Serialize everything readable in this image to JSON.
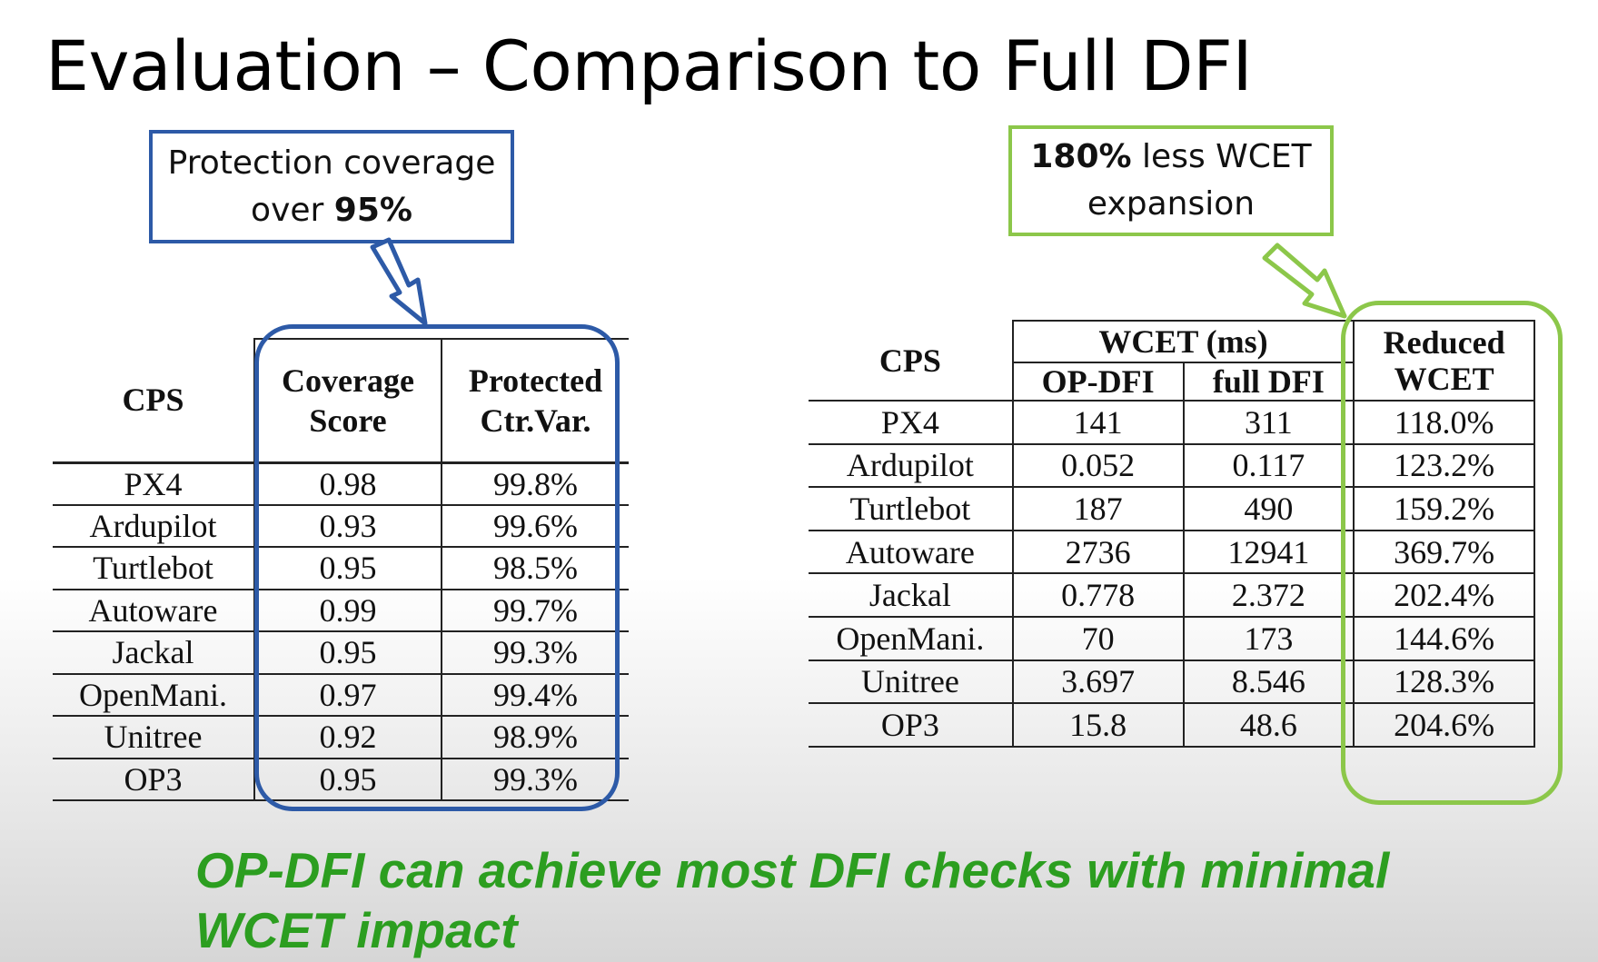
{
  "slide": {
    "title": "Evaluation – Comparison to Full DFI",
    "conclusion": "OP-DFI can achieve most DFI checks with minimal WCET impact"
  },
  "callouts": {
    "coverage": {
      "line1": "Protection coverage",
      "line2_prefix": "over ",
      "line2_bold": "95%"
    },
    "wcet": {
      "line1_bold": "180%",
      "line1_rest": " less WCET",
      "line2": "expansion"
    }
  },
  "coverage_table": {
    "headers": {
      "cps": "CPS",
      "score_1": "Coverage",
      "score_2": "Score",
      "protected_1": "Protected",
      "protected_2": "Ctr.Var."
    },
    "rows": [
      {
        "cps": "PX4",
        "score": "0.98",
        "protected": "99.8%"
      },
      {
        "cps": "Ardupilot",
        "score": "0.93",
        "protected": "99.6%"
      },
      {
        "cps": "Turtlebot",
        "score": "0.95",
        "protected": "98.5%"
      },
      {
        "cps": "Autoware",
        "score": "0.99",
        "protected": "99.7%"
      },
      {
        "cps": "Jackal",
        "score": "0.95",
        "protected": "99.3%"
      },
      {
        "cps": "OpenMani.",
        "score": "0.97",
        "protected": "99.4%"
      },
      {
        "cps": "Unitree",
        "score": "0.92",
        "protected": "98.9%"
      },
      {
        "cps": "OP3",
        "score": "0.95",
        "protected": "99.3%"
      }
    ]
  },
  "wcet_table": {
    "headers": {
      "cps": "CPS",
      "wcet": "WCET (ms)",
      "opdfi": "OP-DFI",
      "fulldfi": "full DFI",
      "reduced_1": "Reduced",
      "reduced_2": "WCET"
    },
    "rows": [
      {
        "cps": "PX4",
        "opdfi": "141",
        "fulldfi": "311",
        "reduced": "118.0%"
      },
      {
        "cps": "Ardupilot",
        "opdfi": "0.052",
        "fulldfi": "0.117",
        "reduced": "123.2%"
      },
      {
        "cps": "Turtlebot",
        "opdfi": "187",
        "fulldfi": "490",
        "reduced": "159.2%"
      },
      {
        "cps": "Autoware",
        "opdfi": "2736",
        "fulldfi": "12941",
        "reduced": "369.7%"
      },
      {
        "cps": "Jackal",
        "opdfi": "0.778",
        "fulldfi": "2.372",
        "reduced": "202.4%"
      },
      {
        "cps": "OpenMani.",
        "opdfi": "70",
        "fulldfi": "173",
        "reduced": "144.6%"
      },
      {
        "cps": "Unitree",
        "opdfi": "3.697",
        "fulldfi": "8.546",
        "reduced": "128.3%"
      },
      {
        "cps": "OP3",
        "opdfi": "15.8",
        "fulldfi": "48.6",
        "reduced": "204.6%"
      }
    ]
  },
  "colors": {
    "blue_accent": "#2d5aa7",
    "green_accent": "#8cc74a",
    "conclusion_green": "#2c9e20"
  },
  "icons": {
    "coverage_arrow": "down-arrow-icon",
    "wcet_arrow": "down-right-arrow-icon"
  }
}
